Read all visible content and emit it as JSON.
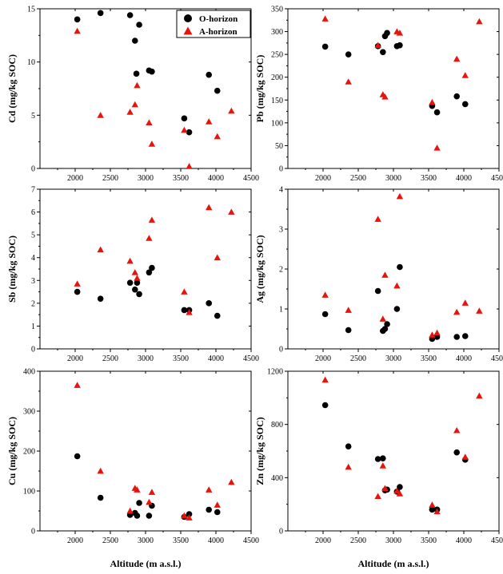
{
  "chart_data": [
    {
      "type": "scatter",
      "ylabel": "Cd (mg/kg SOC)",
      "xlim": [
        1500,
        4500
      ],
      "ylim": [
        0,
        15
      ],
      "yticks": [
        0,
        5,
        10,
        15
      ],
      "legend": "top-right",
      "series": [
        {
          "name": "O-horizon",
          "marker": "circle",
          "color": "#000000",
          "x": [
            2030,
            2360,
            2780,
            2850,
            2870,
            2910,
            3050,
            3090,
            3550,
            3620,
            3900,
            4020
          ],
          "y": [
            14.0,
            14.6,
            14.4,
            12.0,
            8.9,
            13.5,
            9.2,
            9.1,
            4.7,
            3.4,
            8.8,
            7.3
          ]
        },
        {
          "name": "A-horizon",
          "marker": "triangle",
          "color": "#e8140c",
          "x": [
            2030,
            2360,
            2780,
            2850,
            2880,
            3050,
            3090,
            3550,
            3620,
            3900,
            4020,
            4220
          ],
          "y": [
            12.9,
            5.0,
            5.3,
            6.0,
            7.8,
            4.3,
            2.3,
            3.6,
            0.2,
            4.4,
            3.0,
            5.4
          ]
        }
      ]
    },
    {
      "type": "scatter",
      "ylabel": "Pb (mg/kg SOC)",
      "xlim": [
        1500,
        4500
      ],
      "ylim": [
        0,
        350
      ],
      "yticks": [
        0,
        50,
        100,
        150,
        200,
        250,
        300,
        350
      ],
      "series": [
        {
          "name": "O-horizon",
          "marker": "circle",
          "color": "#000000",
          "x": [
            2030,
            2360,
            2780,
            2850,
            2880,
            2910,
            3050,
            3090,
            3550,
            3620,
            3900,
            4020
          ],
          "y": [
            267,
            250,
            268,
            255,
            290,
            297,
            268,
            270,
            137,
            123,
            158,
            141
          ]
        },
        {
          "name": "A-horizon",
          "marker": "triangle",
          "color": "#e8140c",
          "x": [
            2030,
            2360,
            2780,
            2850,
            2880,
            3050,
            3090,
            3550,
            3620,
            3900,
            4020,
            4220
          ],
          "y": [
            328,
            190,
            270,
            162,
            157,
            300,
            297,
            145,
            45,
            240,
            204,
            322
          ]
        }
      ]
    },
    {
      "type": "scatter",
      "ylabel": "Sb (mg/kg SOC)",
      "xlim": [
        1500,
        4500
      ],
      "ylim": [
        0,
        7
      ],
      "yticks": [
        0,
        1,
        2,
        3,
        4,
        5,
        6,
        7
      ],
      "series": [
        {
          "name": "O-horizon",
          "marker": "circle",
          "color": "#000000",
          "x": [
            2030,
            2360,
            2780,
            2850,
            2880,
            2910,
            3050,
            3090,
            3550,
            3620,
            3900,
            4020
          ],
          "y": [
            2.5,
            2.2,
            2.9,
            2.6,
            2.9,
            2.4,
            3.35,
            3.55,
            1.7,
            1.7,
            2.0,
            1.45
          ]
        },
        {
          "name": "A-horizon",
          "marker": "triangle",
          "color": "#e8140c",
          "x": [
            2030,
            2360,
            2780,
            2850,
            2880,
            3050,
            3090,
            3550,
            3620,
            3900,
            4020,
            4220
          ],
          "y": [
            2.85,
            4.35,
            3.85,
            3.35,
            3.1,
            4.85,
            5.65,
            2.5,
            1.6,
            6.2,
            4.0,
            6.0
          ]
        }
      ]
    },
    {
      "type": "scatter",
      "ylabel": "Ag (mg/kg SOC)",
      "xlim": [
        1500,
        4500
      ],
      "ylim": [
        0,
        4
      ],
      "yticks": [
        0,
        1,
        2,
        3,
        4
      ],
      "series": [
        {
          "name": "O-horizon",
          "marker": "circle",
          "color": "#000000",
          "x": [
            2030,
            2360,
            2780,
            2850,
            2880,
            2910,
            3050,
            3090,
            3550,
            3620,
            3900,
            4020
          ],
          "y": [
            0.87,
            0.47,
            1.45,
            0.45,
            0.5,
            0.62,
            1.0,
            2.05,
            0.25,
            0.3,
            0.3,
            0.32
          ]
        },
        {
          "name": "A-horizon",
          "marker": "triangle",
          "color": "#e8140c",
          "x": [
            2030,
            2360,
            2780,
            2850,
            2880,
            3050,
            3090,
            3550,
            3620,
            3900,
            4020,
            4220
          ],
          "y": [
            1.35,
            0.97,
            3.25,
            0.75,
            1.85,
            1.58,
            3.82,
            0.35,
            0.4,
            0.92,
            1.15,
            0.95
          ]
        }
      ]
    },
    {
      "type": "scatter",
      "ylabel": "Cu (mg/kg SOC)",
      "xlabel": "Altitude (m a.s.l.)",
      "xlim": [
        1500,
        4500
      ],
      "ylim": [
        0,
        400
      ],
      "yticks": [
        0,
        100,
        200,
        300,
        400
      ],
      "series": [
        {
          "name": "O-horizon",
          "marker": "circle",
          "color": "#000000",
          "x": [
            2030,
            2360,
            2780,
            2850,
            2880,
            2910,
            3050,
            3090,
            3550,
            3620,
            3900,
            4020
          ],
          "y": [
            187,
            83,
            40,
            45,
            38,
            70,
            38,
            63,
            35,
            42,
            53,
            47
          ]
        },
        {
          "name": "A-horizon",
          "marker": "triangle",
          "color": "#e8140c",
          "x": [
            2030,
            2360,
            2780,
            2850,
            2880,
            3050,
            3090,
            3550,
            3620,
            3900,
            4020,
            4220
          ],
          "y": [
            365,
            150,
            50,
            107,
            103,
            72,
            97,
            38,
            33,
            103,
            65,
            122
          ]
        }
      ]
    },
    {
      "type": "scatter",
      "ylabel": "Zn (mg/kg SOC)",
      "xlabel": "Altitude (m a.s.l.)",
      "xlim": [
        1500,
        4500
      ],
      "ylim": [
        0,
        1200
      ],
      "yticks": [
        0,
        400,
        800,
        1200
      ],
      "series": [
        {
          "name": "O-horizon",
          "marker": "circle",
          "color": "#000000",
          "x": [
            2030,
            2360,
            2780,
            2850,
            2880,
            2910,
            3050,
            3090,
            3550,
            3620,
            3900,
            4020
          ],
          "y": [
            945,
            635,
            540,
            545,
            305,
            310,
            295,
            330,
            160,
            160,
            590,
            535
          ]
        },
        {
          "name": "A-horizon",
          "marker": "triangle",
          "color": "#e8140c",
          "x": [
            2030,
            2360,
            2780,
            2850,
            2880,
            3050,
            3090,
            3550,
            3620,
            3900,
            4020,
            4220
          ],
          "y": [
            1135,
            480,
            260,
            490,
            320,
            300,
            280,
            195,
            145,
            755,
            555,
            1015
          ]
        }
      ]
    }
  ],
  "xticks": [
    2000,
    2500,
    3000,
    3500,
    4000,
    4500
  ]
}
